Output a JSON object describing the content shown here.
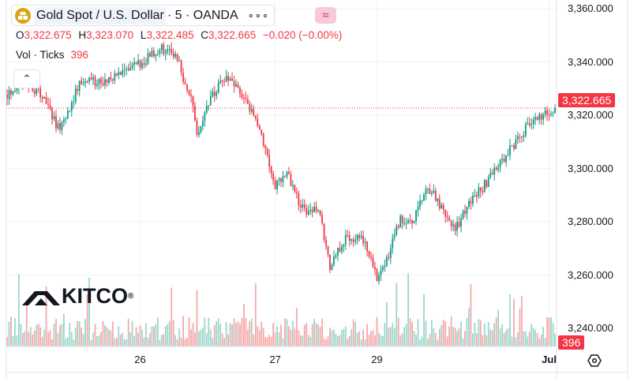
{
  "header": {
    "symbol": "Gold Spot / U.S. Dollar",
    "interval_source": "· 5 · OANDA",
    "more": "∘∘∘",
    "compare": "≈",
    "collapse": "⌃"
  },
  "ohlc": {
    "o_label": "O",
    "o": "3,322.675",
    "h_label": "H",
    "h": "3,323.070",
    "l_label": "L",
    "l": "3,322.485",
    "c_label": "C",
    "c": "3,322.665",
    "change": "−0.020 (−0.00%)"
  },
  "volume": {
    "label": "Vol · Ticks",
    "value": "396"
  },
  "watermark": "KITCO",
  "colors": {
    "up": "#089981",
    "down": "#f23645",
    "accent": "#f23645",
    "logo": "#d9a514"
  },
  "chart_data": {
    "type": "candlestick",
    "title": "Gold Spot / U.S. Dollar · 5 · OANDA",
    "y_ticks": [
      "3,360.000",
      "3,340.000",
      "3,320.000",
      "3,300.000",
      "3,280.000",
      "3,260.000",
      "3,240.000"
    ],
    "y_tick_values": [
      3360,
      3340,
      3320,
      3300,
      3280,
      3260,
      3240
    ],
    "ylim": [
      3235,
      3362
    ],
    "x_ticks": [
      {
        "label": "26",
        "bar": 68
      },
      {
        "label": "27",
        "bar": 137
      },
      {
        "label": "29",
        "bar": 189
      },
      {
        "label": "Jul",
        "bar": 277,
        "bold": true
      }
    ],
    "bars": 281,
    "last_price": "3,322.665",
    "last_price_value": 3322.665,
    "last_volume": "396",
    "price_path": [
      [
        0,
        3327.7
      ],
      [
        9,
        3333.6
      ],
      [
        19,
        3326
      ],
      [
        27,
        3314
      ],
      [
        37,
        3332
      ],
      [
        53,
        3333.6
      ],
      [
        65,
        3338
      ],
      [
        79,
        3345.5
      ],
      [
        87,
        3341
      ],
      [
        95,
        3323
      ],
      [
        97,
        3313
      ],
      [
        103,
        3325
      ],
      [
        111,
        3333.6
      ],
      [
        119,
        3329
      ],
      [
        129,
        3316
      ],
      [
        137,
        3293.6
      ],
      [
        143,
        3298
      ],
      [
        151,
        3284.7
      ],
      [
        159,
        3284.7
      ],
      [
        165,
        3262.5
      ],
      [
        173,
        3274.4
      ],
      [
        181,
        3274.4
      ],
      [
        189,
        3259.6
      ],
      [
        195,
        3268.4
      ],
      [
        201,
        3280.3
      ],
      [
        207,
        3278.8
      ],
      [
        215,
        3293.6
      ],
      [
        223,
        3283.3
      ],
      [
        229,
        3277.3
      ],
      [
        237,
        3287.7
      ],
      [
        247,
        3296.6
      ],
      [
        257,
        3307
      ],
      [
        267,
        3317.3
      ],
      [
        280,
        3322.7
      ]
    ]
  }
}
